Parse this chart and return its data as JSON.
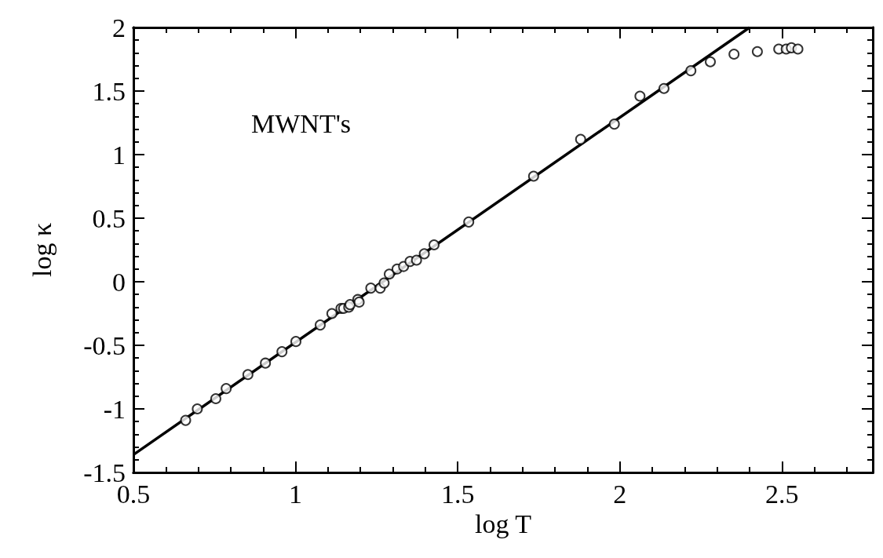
{
  "chart_data": {
    "type": "scatter",
    "xlabel": "log T",
    "ylabel": "log κ",
    "annotations": [
      "MWNT's"
    ],
    "xlim": [
      0.5,
      2.78
    ],
    "xticks": [
      0.5,
      1,
      1.5,
      2,
      2.5
    ],
    "ylim": [
      -1.5,
      2
    ],
    "yticks": [
      -1.5,
      -1,
      -0.5,
      0,
      0.5,
      1,
      1.5,
      2
    ],
    "marker": "circle",
    "series": [
      {
        "color": "#000000",
        "x": [
          0.661,
          0.697,
          0.754,
          0.786,
          0.853,
          0.907,
          0.958,
          1.001,
          1.076,
          1.112,
          1.14,
          1.148,
          1.164,
          1.168,
          1.192,
          1.196,
          1.232,
          1.261,
          1.273,
          1.289,
          1.313,
          1.333,
          1.353,
          1.373,
          1.397,
          1.427,
          1.534,
          1.734,
          1.879,
          1.983,
          2.062,
          2.136,
          2.219,
          2.279,
          2.352,
          2.424,
          2.49,
          2.513,
          2.529,
          2.549
        ],
        "values": [
          -1.09,
          -1.0,
          -0.92,
          -0.84,
          -0.73,
          -0.64,
          -0.55,
          -0.47,
          -0.34,
          -0.25,
          -0.21,
          -0.21,
          -0.2,
          -0.18,
          -0.14,
          -0.16,
          -0.05,
          -0.05,
          -0.01,
          0.06,
          0.1,
          0.12,
          0.16,
          0.17,
          0.22,
          0.29,
          0.47,
          0.83,
          1.12,
          1.24,
          1.46,
          1.52,
          1.66,
          1.73,
          1.79,
          1.81,
          1.83,
          1.83,
          1.84,
          1.83
        ]
      },
      {
        "type": "line",
        "color": "#000000",
        "marker": "none",
        "x": [
          0.5,
          2.4
        ],
        "values": [
          -1.36,
          2.0
        ]
      }
    ]
  }
}
